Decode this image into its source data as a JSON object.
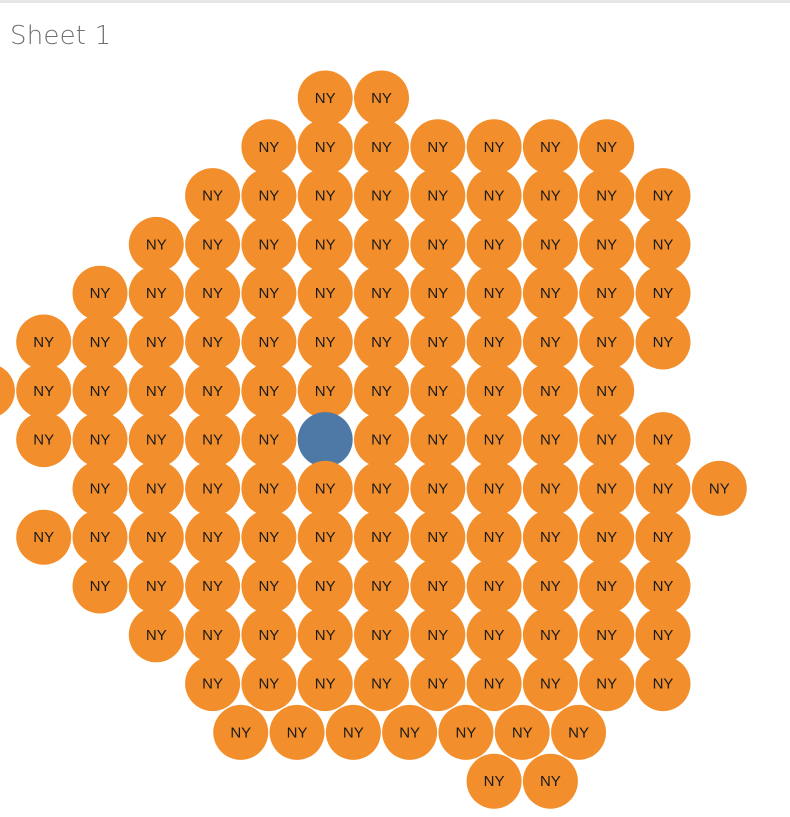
{
  "sheet": {
    "title": "Sheet 1"
  },
  "colors": {
    "primary": "#f28e2b",
    "highlight": "#4e79a7",
    "label": "#1a1a1a"
  },
  "chart_data": {
    "type": "packed-bubble",
    "mark_label": "NY",
    "rows": [
      {
        "start": 4,
        "count": 2
      },
      {
        "start": 3,
        "count": 7
      },
      {
        "start": 2,
        "count": 9
      },
      {
        "start": 1,
        "count": 10
      },
      {
        "start": 0,
        "count": 11
      },
      {
        "start": -1,
        "count": 12
      },
      {
        "start": -2,
        "count": 12
      },
      {
        "start": -1,
        "count": 12,
        "highlight_index": 5
      },
      {
        "start": 0,
        "count": 12
      },
      {
        "start": -1,
        "count": 12
      },
      {
        "start": 0,
        "count": 11
      },
      {
        "start": 1,
        "count": 10
      },
      {
        "start": 2,
        "count": 9
      },
      {
        "start": 2.5,
        "count": 7
      },
      {
        "start": 7,
        "count": 2
      }
    ]
  }
}
